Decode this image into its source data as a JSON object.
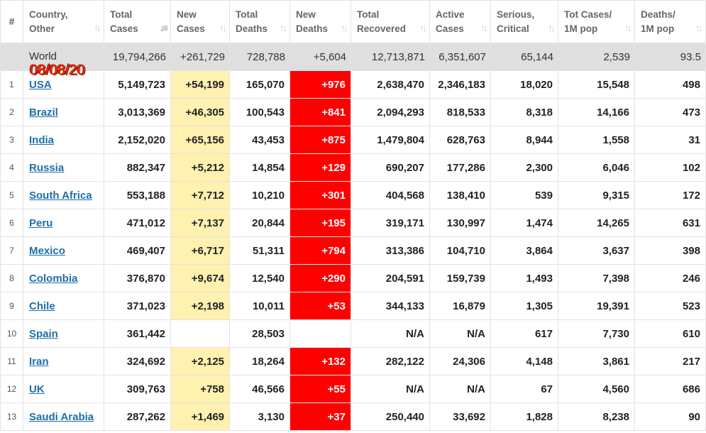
{
  "columns": [
    {
      "line1": "#",
      "line2": ""
    },
    {
      "line1": "Country,",
      "line2": "Other"
    },
    {
      "line1": "Total",
      "line2": "Cases"
    },
    {
      "line1": "New",
      "line2": "Cases"
    },
    {
      "line1": "Total",
      "line2": "Deaths"
    },
    {
      "line1": "New",
      "line2": "Deaths"
    },
    {
      "line1": "Total",
      "line2": "Recovered"
    },
    {
      "line1": "Active",
      "line2": "Cases"
    },
    {
      "line1": "Serious,",
      "line2": "Critical"
    },
    {
      "line1": "Tot Cases/",
      "line2": "1M pop"
    },
    {
      "line1": "Deaths/",
      "line2": "1M pop"
    }
  ],
  "world": {
    "label": "World",
    "date_stamp": "08/08/20",
    "total_cases": "19,794,266",
    "new_cases": "+261,729",
    "total_deaths": "728,788",
    "new_deaths": "+5,604",
    "total_recovered": "12,713,871",
    "active_cases": "6,351,607",
    "serious_critical": "65,144",
    "cases_per_1m": "2,539",
    "deaths_per_1m": "93.5"
  },
  "rows": [
    {
      "idx": "1",
      "country": "USA",
      "total_cases": "5,149,723",
      "new_cases": "+54,199",
      "total_deaths": "165,070",
      "new_deaths": "+976",
      "total_recovered": "2,638,470",
      "active_cases": "2,346,183",
      "serious_critical": "18,020",
      "cases_per_1m": "15,548",
      "deaths_per_1m": "498"
    },
    {
      "idx": "2",
      "country": "Brazil",
      "total_cases": "3,013,369",
      "new_cases": "+46,305",
      "total_deaths": "100,543",
      "new_deaths": "+841",
      "total_recovered": "2,094,293",
      "active_cases": "818,533",
      "serious_critical": "8,318",
      "cases_per_1m": "14,166",
      "deaths_per_1m": "473"
    },
    {
      "idx": "3",
      "country": "India",
      "total_cases": "2,152,020",
      "new_cases": "+65,156",
      "total_deaths": "43,453",
      "new_deaths": "+875",
      "total_recovered": "1,479,804",
      "active_cases": "628,763",
      "serious_critical": "8,944",
      "cases_per_1m": "1,558",
      "deaths_per_1m": "31"
    },
    {
      "idx": "4",
      "country": "Russia",
      "total_cases": "882,347",
      "new_cases": "+5,212",
      "total_deaths": "14,854",
      "new_deaths": "+129",
      "total_recovered": "690,207",
      "active_cases": "177,286",
      "serious_critical": "2,300",
      "cases_per_1m": "6,046",
      "deaths_per_1m": "102"
    },
    {
      "idx": "5",
      "country": "South Africa",
      "total_cases": "553,188",
      "new_cases": "+7,712",
      "total_deaths": "10,210",
      "new_deaths": "+301",
      "total_recovered": "404,568",
      "active_cases": "138,410",
      "serious_critical": "539",
      "cases_per_1m": "9,315",
      "deaths_per_1m": "172"
    },
    {
      "idx": "6",
      "country": "Peru",
      "total_cases": "471,012",
      "new_cases": "+7,137",
      "total_deaths": "20,844",
      "new_deaths": "+195",
      "total_recovered": "319,171",
      "active_cases": "130,997",
      "serious_critical": "1,474",
      "cases_per_1m": "14,265",
      "deaths_per_1m": "631"
    },
    {
      "idx": "7",
      "country": "Mexico",
      "total_cases": "469,407",
      "new_cases": "+6,717",
      "total_deaths": "51,311",
      "new_deaths": "+794",
      "total_recovered": "313,386",
      "active_cases": "104,710",
      "serious_critical": "3,864",
      "cases_per_1m": "3,637",
      "deaths_per_1m": "398"
    },
    {
      "idx": "8",
      "country": "Colombia",
      "total_cases": "376,870",
      "new_cases": "+9,674",
      "total_deaths": "12,540",
      "new_deaths": "+290",
      "total_recovered": "204,591",
      "active_cases": "159,739",
      "serious_critical": "1,493",
      "cases_per_1m": "7,398",
      "deaths_per_1m": "246"
    },
    {
      "idx": "9",
      "country": "Chile",
      "total_cases": "371,023",
      "new_cases": "+2,198",
      "total_deaths": "10,011",
      "new_deaths": "+53",
      "total_recovered": "344,133",
      "active_cases": "16,879",
      "serious_critical": "1,305",
      "cases_per_1m": "19,391",
      "deaths_per_1m": "523"
    },
    {
      "idx": "10",
      "country": "Spain",
      "total_cases": "361,442",
      "new_cases": "",
      "total_deaths": "28,503",
      "new_deaths": "",
      "total_recovered": "N/A",
      "active_cases": "N/A",
      "serious_critical": "617",
      "cases_per_1m": "7,730",
      "deaths_per_1m": "610"
    },
    {
      "idx": "11",
      "country": "Iran",
      "total_cases": "324,692",
      "new_cases": "+2,125",
      "total_deaths": "18,264",
      "new_deaths": "+132",
      "total_recovered": "282,122",
      "active_cases": "24,306",
      "serious_critical": "4,148",
      "cases_per_1m": "3,861",
      "deaths_per_1m": "217"
    },
    {
      "idx": "12",
      "country": "UK",
      "total_cases": "309,763",
      "new_cases": "+758",
      "total_deaths": "46,566",
      "new_deaths": "+55",
      "total_recovered": "N/A",
      "active_cases": "N/A",
      "serious_critical": "67",
      "cases_per_1m": "4,560",
      "deaths_per_1m": "686"
    },
    {
      "idx": "13",
      "country": "Saudi Arabia",
      "total_cases": "287,262",
      "new_cases": "+1,469",
      "total_deaths": "3,130",
      "new_deaths": "+37",
      "total_recovered": "250,440",
      "active_cases": "33,692",
      "serious_critical": "1,828",
      "cases_per_1m": "8,238",
      "deaths_per_1m": "90"
    }
  ]
}
